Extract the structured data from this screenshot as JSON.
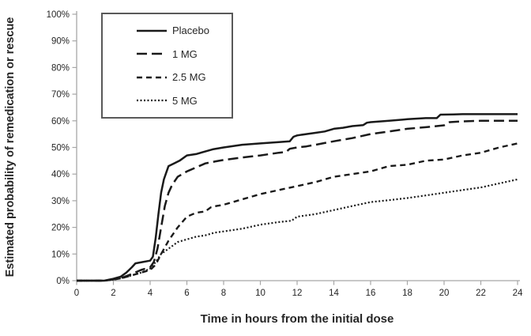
{
  "chart_data": {
    "type": "line",
    "title": "",
    "xlabel": "Time in hours from the initial dose",
    "ylabel": "Estimated probability of remedication or rescue",
    "xlim": [
      0,
      24
    ],
    "ylim": [
      0,
      100
    ],
    "x_ticks": [
      0,
      2,
      4,
      6,
      8,
      10,
      12,
      14,
      16,
      18,
      20,
      22,
      24
    ],
    "y_ticks": [
      0,
      10,
      20,
      30,
      40,
      50,
      60,
      70,
      80,
      90,
      100
    ],
    "y_tick_suffix": "%",
    "grid": false,
    "legend_position": "top-left-box",
    "line_color": "#1a1a1a",
    "axis_color": "#a6a6a6",
    "text_color": "#262626",
    "series": [
      {
        "name": "Placebo",
        "dash_style": "solid",
        "dasharray": "",
        "stroke_width": 2.5,
        "points": [
          [
            0,
            0
          ],
          [
            1.5,
            0
          ],
          [
            2,
            0.7
          ],
          [
            2.4,
            1.5
          ],
          [
            2.7,
            3
          ],
          [
            3,
            5
          ],
          [
            3.2,
            6.5
          ],
          [
            3.6,
            7
          ],
          [
            4,
            7.5
          ],
          [
            4.15,
            9
          ],
          [
            4.3,
            16
          ],
          [
            4.45,
            25
          ],
          [
            4.6,
            33
          ],
          [
            4.75,
            38
          ],
          [
            4.9,
            41
          ],
          [
            5,
            43
          ],
          [
            5.3,
            44
          ],
          [
            5.6,
            45
          ],
          [
            6,
            47
          ],
          [
            6.5,
            47.5
          ],
          [
            7,
            48.5
          ],
          [
            7.4,
            49.3
          ],
          [
            8,
            50
          ],
          [
            8.6,
            50.6
          ],
          [
            9,
            51
          ],
          [
            10,
            51.5
          ],
          [
            11,
            52
          ],
          [
            11.6,
            52.3
          ],
          [
            11.8,
            54
          ],
          [
            12,
            54.5
          ],
          [
            12.5,
            55
          ],
          [
            13,
            55.5
          ],
          [
            13.5,
            56
          ],
          [
            14,
            57
          ],
          [
            14.5,
            57.4
          ],
          [
            15,
            58
          ],
          [
            15.6,
            58.4
          ],
          [
            15.8,
            59.3
          ],
          [
            16,
            59.5
          ],
          [
            17,
            60
          ],
          [
            18,
            60.6
          ],
          [
            19,
            61
          ],
          [
            19.6,
            61
          ],
          [
            19.8,
            62.3
          ],
          [
            20.5,
            62.4
          ],
          [
            21,
            62.5
          ],
          [
            22,
            62.5
          ],
          [
            23,
            62.5
          ],
          [
            24,
            62.5
          ]
        ]
      },
      {
        "name": "1 MG",
        "dash_style": "long-dash",
        "dasharray": "13 6",
        "stroke_width": 2.5,
        "points": [
          [
            0,
            0
          ],
          [
            1.5,
            0
          ],
          [
            2,
            0.5
          ],
          [
            2.5,
            1.2
          ],
          [
            3,
            2.5
          ],
          [
            3.5,
            4
          ],
          [
            4,
            5
          ],
          [
            4.2,
            7
          ],
          [
            4.4,
            12
          ],
          [
            4.6,
            20
          ],
          [
            4.8,
            28
          ],
          [
            5,
            33
          ],
          [
            5.2,
            36
          ],
          [
            5.5,
            39
          ],
          [
            6,
            41
          ],
          [
            6.5,
            42.5
          ],
          [
            7,
            44
          ],
          [
            7.5,
            44.7
          ],
          [
            8,
            45.3
          ],
          [
            9,
            46.2
          ],
          [
            10,
            47
          ],
          [
            11,
            48
          ],
          [
            11.4,
            48.3
          ],
          [
            11.6,
            49.5
          ],
          [
            12,
            50
          ],
          [
            12.5,
            50.4
          ],
          [
            13,
            51
          ],
          [
            14,
            52.3
          ],
          [
            15,
            53.5
          ],
          [
            16,
            55
          ],
          [
            17,
            56
          ],
          [
            18,
            57
          ],
          [
            19,
            57.6
          ],
          [
            20,
            58.3
          ],
          [
            20.3,
            59.5
          ],
          [
            21,
            59.8
          ],
          [
            22,
            60
          ],
          [
            23,
            60
          ],
          [
            24,
            60
          ]
        ]
      },
      {
        "name": "2.5 MG",
        "dash_style": "dash",
        "dasharray": "7 5",
        "stroke_width": 2.4,
        "points": [
          [
            0,
            0
          ],
          [
            1.5,
            0
          ],
          [
            2,
            0.4
          ],
          [
            2.5,
            1
          ],
          [
            3,
            2
          ],
          [
            3.5,
            3
          ],
          [
            4,
            4
          ],
          [
            4.3,
            6
          ],
          [
            4.6,
            10
          ],
          [
            5,
            15
          ],
          [
            5.5,
            20
          ],
          [
            6,
            24
          ],
          [
            6.5,
            25.5
          ],
          [
            7,
            26
          ],
          [
            7.3,
            27.5
          ],
          [
            7.6,
            28
          ],
          [
            8,
            28.5
          ],
          [
            9,
            30.5
          ],
          [
            10,
            32.5
          ],
          [
            11,
            34
          ],
          [
            12,
            35.5
          ],
          [
            13,
            37
          ],
          [
            14,
            39
          ],
          [
            15,
            40
          ],
          [
            16,
            41
          ],
          [
            17,
            43
          ],
          [
            18,
            43.5
          ],
          [
            19,
            45
          ],
          [
            20,
            45.5
          ],
          [
            21,
            47
          ],
          [
            22,
            48
          ],
          [
            23,
            50
          ],
          [
            24,
            51.5
          ]
        ]
      },
      {
        "name": "5 MG",
        "dash_style": "dotted",
        "dasharray": "2 2.5",
        "stroke_width": 2.2,
        "points": [
          [
            0,
            0
          ],
          [
            1.5,
            0
          ],
          [
            2,
            0.4
          ],
          [
            2.5,
            1
          ],
          [
            3,
            2
          ],
          [
            3.5,
            3
          ],
          [
            4,
            4.5
          ],
          [
            4.3,
            7
          ],
          [
            4.6,
            10
          ],
          [
            5,
            12
          ],
          [
            5.5,
            14.5
          ],
          [
            6,
            15.5
          ],
          [
            6.5,
            16.5
          ],
          [
            7,
            17
          ],
          [
            7.5,
            18
          ],
          [
            8,
            18.5
          ],
          [
            9,
            19.5
          ],
          [
            10,
            21
          ],
          [
            11,
            22
          ],
          [
            11.7,
            22.5
          ],
          [
            12,
            24
          ],
          [
            13,
            25
          ],
          [
            14,
            26.5
          ],
          [
            15,
            28
          ],
          [
            16,
            29.5
          ],
          [
            17,
            30.2
          ],
          [
            18,
            31
          ],
          [
            19,
            32
          ],
          [
            20,
            33
          ],
          [
            21,
            34
          ],
          [
            22,
            35
          ],
          [
            23,
            36.5
          ],
          [
            24,
            38
          ]
        ]
      }
    ]
  }
}
